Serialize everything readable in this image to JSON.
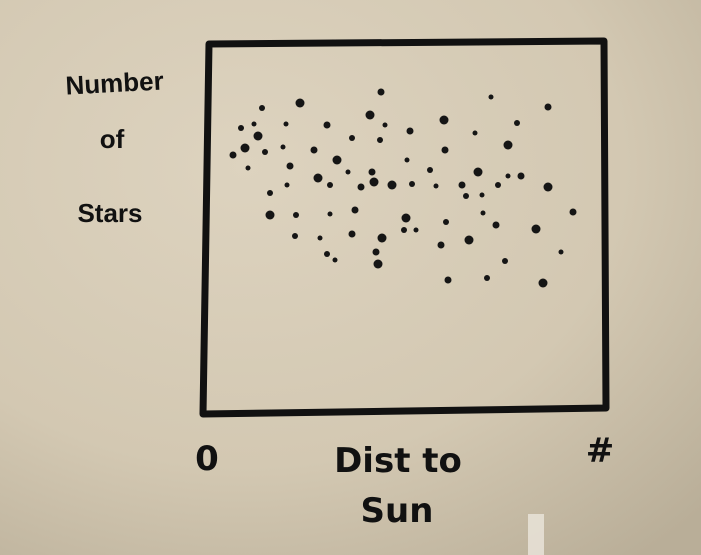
{
  "figure": {
    "y_label": [
      "Number",
      "of",
      "Stars"
    ],
    "x_label": [
      "Dist to",
      "Sun"
    ],
    "x_start": "0",
    "x_end": "#"
  }
}
